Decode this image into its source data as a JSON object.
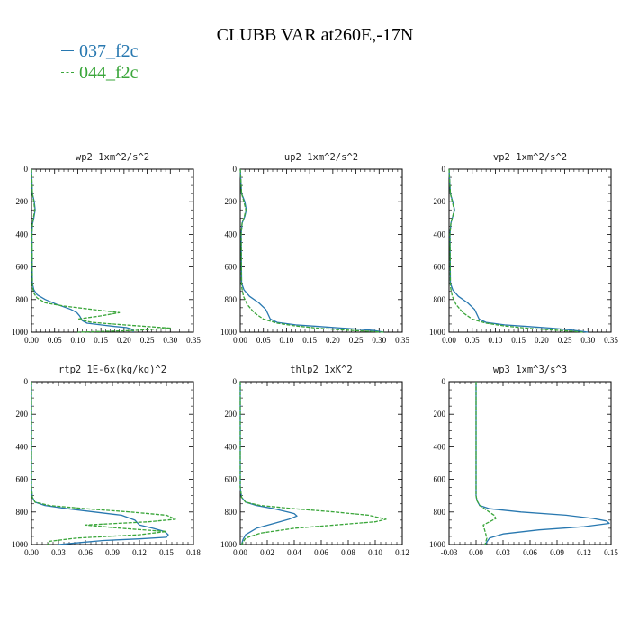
{
  "title": "CLUBB VAR at260E,-17N",
  "legend": [
    {
      "label": "037_f2c",
      "color": "#2878b0",
      "dashed": false
    },
    {
      "label": "044_f2c",
      "color": "#3aa63a",
      "dashed": true
    }
  ],
  "chart_data": [
    {
      "type": "line",
      "title": "wp2   1xm^2/s^2",
      "xlim": [
        0,
        0.35
      ],
      "xticks": [
        "0.00",
        "0.05",
        "0.10",
        "0.15",
        "0.20",
        "0.25",
        "0.30",
        "0.35"
      ],
      "ylim": [
        0,
        1000
      ],
      "y_inverted": true,
      "yticks": [
        "0",
        "200",
        "400",
        "600",
        "800",
        "1000"
      ],
      "series": [
        {
          "name": "037_f2c",
          "x": [
            0,
            0.002,
            0.006,
            0.008,
            0.005,
            0.002,
            0.001,
            0.002,
            0.005,
            0.012,
            0.03,
            0.055,
            0.085,
            0.098,
            0.104,
            0.11,
            0.12,
            0.15,
            0.18,
            0.205,
            0.215,
            0.22,
            0.22
          ],
          "y": [
            0,
            150,
            200,
            250,
            300,
            340,
            400,
            700,
            740,
            770,
            800,
            830,
            860,
            880,
            900,
            930,
            945,
            955,
            965,
            972,
            980,
            990,
            1000
          ]
        },
        {
          "name": "044_f2c",
          "x": [
            0,
            0.002,
            0.005,
            0.007,
            0.004,
            0.002,
            0.001,
            0.002,
            0.005,
            0.012,
            0.03,
            0.07,
            0.13,
            0.19,
            0.15,
            0.1,
            0.13,
            0.2,
            0.25,
            0.3,
            0.22,
            0.1
          ],
          "y": [
            0,
            150,
            200,
            250,
            300,
            340,
            400,
            720,
            760,
            790,
            820,
            840,
            860,
            880,
            900,
            920,
            940,
            955,
            965,
            975,
            990,
            1000
          ]
        }
      ]
    },
    {
      "type": "line",
      "title": "up2   1xm^2/s^2",
      "xlim": [
        0,
        0.35
      ],
      "xticks": [
        "0.00",
        "0.05",
        "0.10",
        "0.15",
        "0.20",
        "0.25",
        "0.30",
        "0.35"
      ],
      "ylim": [
        0,
        1000
      ],
      "y_inverted": true,
      "yticks": [
        "0",
        "200",
        "400",
        "600",
        "800",
        "1000"
      ],
      "series": [
        {
          "name": "037_f2c",
          "x": [
            0,
            0.003,
            0.01,
            0.013,
            0.01,
            0.004,
            0.002,
            0.003,
            0.008,
            0.02,
            0.04,
            0.055,
            0.06,
            0.065,
            0.08,
            0.12,
            0.17,
            0.22,
            0.26,
            0.29,
            0.3,
            0.31
          ],
          "y": [
            0,
            150,
            200,
            250,
            290,
            330,
            400,
            700,
            740,
            780,
            820,
            860,
            890,
            920,
            940,
            955,
            965,
            975,
            983,
            990,
            995,
            1000
          ]
        },
        {
          "name": "044_f2c",
          "x": [
            0,
            0.003,
            0.008,
            0.012,
            0.009,
            0.004,
            0.002,
            0.003,
            0.007,
            0.015,
            0.03,
            0.05,
            0.08,
            0.12,
            0.17,
            0.23,
            0.28,
            0.31
          ],
          "y": [
            0,
            150,
            200,
            250,
            290,
            330,
            400,
            720,
            780,
            830,
            880,
            920,
            945,
            962,
            976,
            988,
            995,
            1000
          ]
        }
      ]
    },
    {
      "type": "line",
      "title": "vp2   1xm^2/s^2",
      "xlim": [
        0,
        0.35
      ],
      "xticks": [
        "0.00",
        "0.05",
        "0.10",
        "0.15",
        "0.20",
        "0.25",
        "0.30",
        "0.35"
      ],
      "ylim": [
        0,
        1000
      ],
      "y_inverted": true,
      "yticks": [
        "0",
        "200",
        "400",
        "600",
        "800",
        "1000"
      ],
      "series": [
        {
          "name": "037_f2c",
          "x": [
            0,
            0.003,
            0.008,
            0.012,
            0.008,
            0.004,
            0.002,
            0.003,
            0.008,
            0.02,
            0.04,
            0.055,
            0.06,
            0.065,
            0.08,
            0.12,
            0.17,
            0.22,
            0.26,
            0.28,
            0.3
          ],
          "y": [
            0,
            150,
            200,
            250,
            290,
            330,
            400,
            700,
            740,
            780,
            820,
            860,
            890,
            920,
            940,
            955,
            965,
            975,
            985,
            993,
            1000
          ]
        },
        {
          "name": "044_f2c",
          "x": [
            0,
            0.003,
            0.007,
            0.011,
            0.008,
            0.004,
            0.002,
            0.003,
            0.007,
            0.015,
            0.03,
            0.05,
            0.08,
            0.12,
            0.17,
            0.23,
            0.27,
            0.29
          ],
          "y": [
            0,
            150,
            200,
            250,
            290,
            330,
            400,
            720,
            780,
            830,
            880,
            920,
            945,
            962,
            976,
            988,
            995,
            1000
          ]
        }
      ]
    },
    {
      "type": "line",
      "title": "rtp2   1E-6x(kg/kg)^2",
      "xlim": [
        0,
        0.18
      ],
      "xticks": [
        "0.00",
        "0.03",
        "0.06",
        "0.09",
        "0.12",
        "0.15",
        "0.18"
      ],
      "ylim": [
        0,
        1000
      ],
      "y_inverted": true,
      "yticks": [
        "0",
        "200",
        "400",
        "600",
        "800",
        "1000"
      ],
      "series": [
        {
          "name": "037_f2c",
          "x": [
            0,
            0,
            0.001,
            0.004,
            0.015,
            0.04,
            0.07,
            0.1,
            0.115,
            0.12,
            0.135,
            0.148,
            0.152,
            0.15,
            0.12,
            0.08,
            0.05,
            0.03
          ],
          "y": [
            0,
            650,
            710,
            740,
            760,
            780,
            800,
            820,
            850,
            880,
            900,
            920,
            940,
            955,
            965,
            975,
            990,
            1000
          ]
        },
        {
          "name": "044_f2c",
          "x": [
            0,
            0,
            0.001,
            0.004,
            0.02,
            0.06,
            0.11,
            0.15,
            0.16,
            0.13,
            0.06,
            0.1,
            0.15,
            0.12,
            0.05,
            0.02,
            0.018
          ],
          "y": [
            0,
            650,
            710,
            740,
            760,
            780,
            800,
            820,
            845,
            860,
            880,
            900,
            920,
            940,
            960,
            980,
            1000
          ]
        }
      ]
    },
    {
      "type": "line",
      "title": "thlp2   1xK^2",
      "xlim": [
        0,
        0.12
      ],
      "xticks": [
        "0.00",
        "0.02",
        "0.04",
        "0.06",
        "0.08",
        "0.10",
        "0.12"
      ],
      "ylim": [
        0,
        1000
      ],
      "y_inverted": true,
      "yticks": [
        "0",
        "200",
        "400",
        "600",
        "800",
        "1000"
      ],
      "series": [
        {
          "name": "037_f2c",
          "x": [
            0,
            0,
            0.001,
            0.004,
            0.012,
            0.025,
            0.035,
            0.04,
            0.042,
            0.036,
            0.025,
            0.012,
            0.004,
            0.002,
            0.001
          ],
          "y": [
            0,
            650,
            710,
            740,
            760,
            780,
            800,
            810,
            825,
            845,
            870,
            900,
            940,
            970,
            1000
          ]
        },
        {
          "name": "044_f2c",
          "x": [
            0,
            0,
            0.001,
            0.004,
            0.015,
            0.04,
            0.07,
            0.095,
            0.108,
            0.1,
            0.07,
            0.04,
            0.015,
            0.004,
            0.001
          ],
          "y": [
            0,
            650,
            710,
            740,
            760,
            780,
            800,
            820,
            845,
            860,
            880,
            900,
            930,
            960,
            1000
          ]
        }
      ]
    },
    {
      "type": "line",
      "title": "wp3   1xm^3/s^3",
      "xlim": [
        -0.03,
        0.15
      ],
      "xticks": [
        "-0.03",
        "0.00",
        "0.03",
        "0.06",
        "0.09",
        "0.12",
        "0.15"
      ],
      "ylim": [
        0,
        1000
      ],
      "y_inverted": true,
      "yticks": [
        "0",
        "200",
        "400",
        "600",
        "800",
        "1000"
      ],
      "series": [
        {
          "name": "037_f2c",
          "x": [
            0,
            0,
            0.001,
            0.004,
            0.015,
            0.05,
            0.1,
            0.13,
            0.145,
            0.148,
            0.12,
            0.07,
            0.03,
            0.015,
            0.01
          ],
          "y": [
            0,
            700,
            730,
            760,
            780,
            800,
            820,
            840,
            855,
            870,
            890,
            910,
            935,
            960,
            1000
          ]
        },
        {
          "name": "044_f2c",
          "x": [
            0,
            0,
            0.001,
            0.004,
            0.012,
            0.02,
            0.022,
            0.015,
            0.008,
            0.01,
            0.012,
            0.01
          ],
          "y": [
            0,
            700,
            730,
            760,
            790,
            820,
            840,
            860,
            880,
            920,
            960,
            1000
          ]
        }
      ]
    }
  ]
}
